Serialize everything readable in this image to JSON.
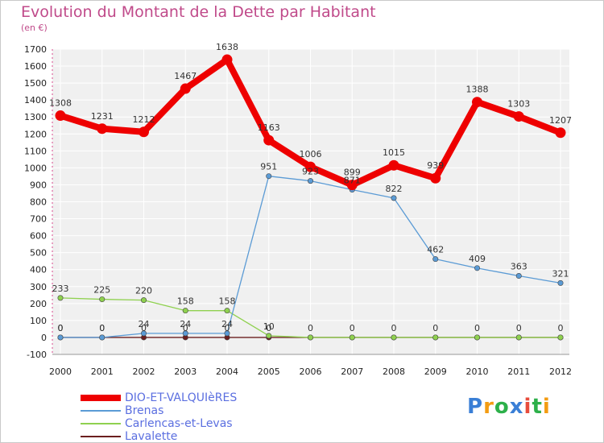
{
  "title": "Evolution du Montant de la Dette par Habitant",
  "subtitle": "(en €)",
  "logo": {
    "text": "Proxiti",
    "colors": [
      "#3a7fd6",
      "#f39c12",
      "#2db04a",
      "#3a7fd6",
      "#e74c3c",
      "#2db04a",
      "#f39c12"
    ]
  },
  "chart_data": {
    "type": "line",
    "x": [
      "2000",
      "2001",
      "2002",
      "2003",
      "2004",
      "2005",
      "2006",
      "2007",
      "2008",
      "2009",
      "2010",
      "2011",
      "2012"
    ],
    "ylim": [
      -100,
      1700
    ],
    "yticks": [
      -100,
      0,
      100,
      200,
      300,
      400,
      500,
      600,
      700,
      800,
      900,
      1000,
      1100,
      1200,
      1300,
      1400,
      1500,
      1600,
      1700
    ],
    "grid": true,
    "legend_position": "bottom-left",
    "series": [
      {
        "name": "DIO-ET-VALQUIèRES",
        "color": "#ee0000",
        "width": 8,
        "values": [
          1308,
          1231,
          1212,
          1467,
          1638,
          1163,
          1006,
          899,
          1015,
          939,
          1388,
          1303,
          1207
        ],
        "labels": [
          "1308",
          "1231",
          "1212",
          "1467",
          "1638",
          "1163",
          "1006",
          "899",
          "1015",
          "939",
          "1388",
          "1303",
          "1207"
        ]
      },
      {
        "name": "Brenas",
        "color": "#5b9bd5",
        "width": 1.3,
        "values": [
          0,
          0,
          24,
          24,
          24,
          951,
          923,
          871,
          822,
          462,
          409,
          363,
          321
        ],
        "labels": [
          "0",
          "0",
          "24",
          "24",
          "24",
          "951",
          "923",
          "871",
          "822",
          "462",
          "409",
          "363",
          "321"
        ]
      },
      {
        "name": "Carlencas-et-Levas",
        "color": "#8fd14f",
        "width": 1.3,
        "values": [
          233,
          225,
          220,
          158,
          158,
          10,
          0,
          0,
          0,
          0,
          0,
          0,
          0
        ],
        "labels": [
          "233",
          "225",
          "220",
          "158",
          "158",
          "10",
          "",
          "",
          "",
          "",
          "",
          "",
          ""
        ]
      },
      {
        "name": "Lavalette",
        "color": "#6b1f1f",
        "width": 1.3,
        "values": [
          0,
          0,
          0,
          0,
          0,
          0,
          0,
          0,
          0,
          0,
          0,
          0,
          0
        ],
        "labels": [
          "0",
          "0",
          "0",
          "0",
          "0",
          "0",
          "0",
          "0",
          "0",
          "0",
          "0",
          "0",
          "0"
        ]
      }
    ]
  }
}
